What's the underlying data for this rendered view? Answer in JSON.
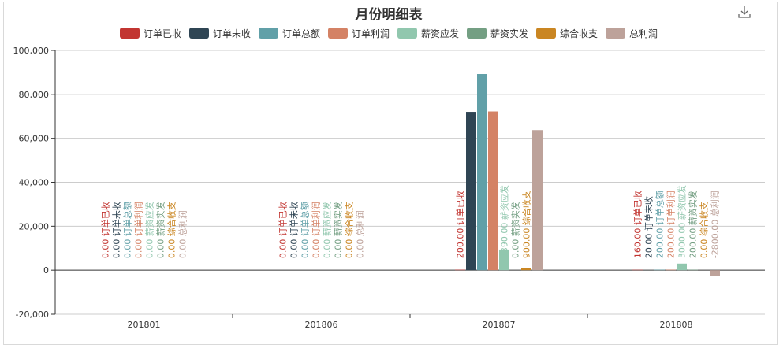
{
  "toolbar": {
    "download_icon": "download-icon"
  },
  "chart_data": {
    "type": "bar",
    "title": "月份明细表",
    "xlabel": "",
    "ylabel": "",
    "categories": [
      "201801",
      "201806",
      "201807",
      "201808"
    ],
    "ylim": [
      -20000,
      100000
    ],
    "yticks": [
      -20000,
      0,
      20000,
      40000,
      60000,
      80000,
      100000
    ],
    "ytick_labels": [
      "-20,000",
      "0",
      "20,000",
      "40,000",
      "60,000",
      "80,000",
      "100,000"
    ],
    "legend_position": "top-center",
    "grid": true,
    "series": [
      {
        "name": "订单已收",
        "color": "#c23531",
        "values": [
          0,
          0,
          200,
          160
        ],
        "labels": [
          "0.00 订单已收",
          "0.00 订单已收",
          "200.00 订单已收",
          "160.00 订单已收"
        ]
      },
      {
        "name": "订单未收",
        "color": "#2f4554",
        "values": [
          0,
          0,
          72040.68,
          20
        ],
        "labels": [
          "0.00 订单未收",
          "0.00 订单未收",
          "72040.68 订单未收",
          "20.00 订单未收"
        ]
      },
      {
        "name": "订单总额",
        "color": "#61a0a8",
        "values": [
          0,
          0,
          89248.68,
          200
        ],
        "labels": [
          "0.00 订单总额",
          "0.00 订单总额",
          "89248.68 订单总额",
          "200.00 订单总额"
        ]
      },
      {
        "name": "订单利润",
        "color": "#d48265",
        "values": [
          0,
          0,
          72230.68,
          200
        ],
        "labels": [
          "0.00 订单利润",
          "0.00 订单利润",
          "72230.68 订单利润",
          "200.00 订单利润"
        ]
      },
      {
        "name": "薪资应发",
        "color": "#91c7ae",
        "values": [
          0,
          0,
          9390,
          3000
        ],
        "labels": [
          "0.00 薪资应发",
          "0.00 薪资应发",
          "9390.00 薪资应发",
          "3000.00 薪资应发"
        ]
      },
      {
        "name": "薪资实发",
        "color": "#749f83",
        "values": [
          0,
          0,
          0,
          200
        ],
        "labels": [
          "0.00 薪资实发",
          "0.00 薪资实发",
          "0.00 薪资实发",
          "200.00 薪资实发"
        ]
      },
      {
        "name": "综合收支",
        "color": "#ca8622",
        "values": [
          0,
          0,
          900,
          0
        ],
        "labels": [
          "0.00 综合收支",
          "0.00 综合收支",
          "900.00 综合收支",
          "0.00 综合收支"
        ]
      },
      {
        "name": "总利润",
        "color": "#bda29a",
        "values": [
          0,
          0,
          63738.78,
          -2800
        ],
        "labels": [
          "0.00 总利润",
          "0.00 总利润",
          "63738.78 总利润",
          "-2800.00 总利润"
        ]
      }
    ]
  }
}
